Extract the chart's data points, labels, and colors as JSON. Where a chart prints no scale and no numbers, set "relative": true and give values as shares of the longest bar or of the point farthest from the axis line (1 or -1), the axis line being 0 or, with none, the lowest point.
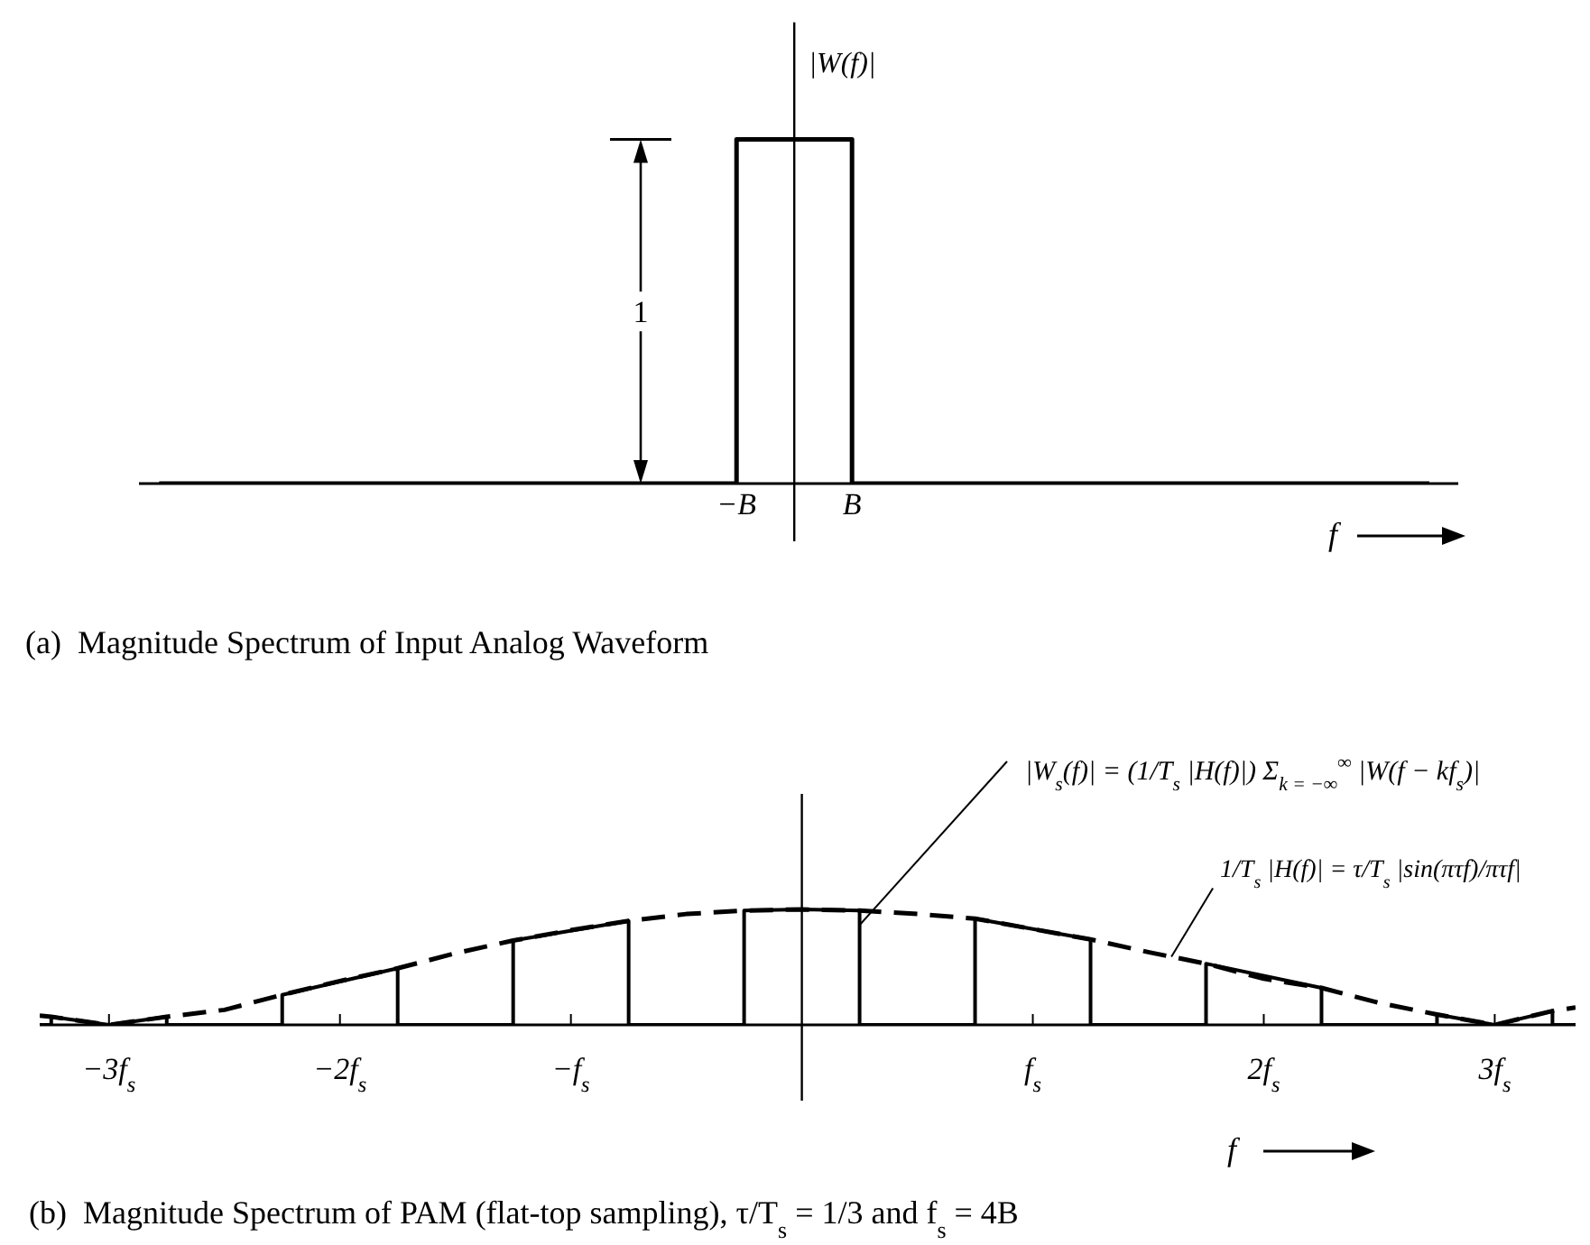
{
  "chart_data": [
    {
      "type": "step",
      "relative": true,
      "ylabel": "|W(f)|",
      "xlabel": "f",
      "categories": [
        null,
        null,
        null,
        null,
        null,
        null,
        null,
        null,
        null,
        null,
        "−B",
        null,
        "B",
        null,
        null,
        null,
        null,
        null,
        null,
        null,
        null,
        null,
        null
      ],
      "series": [
        {
          "color": "#000000",
          "values": [
            0,
            0,
            0,
            0,
            0,
            0,
            0,
            0,
            0,
            0,
            1,
            1,
            0,
            0,
            0,
            0,
            0,
            0,
            0,
            0,
            0,
            0,
            0
          ]
        }
      ],
      "ref_lines": [
        {
          "axis": "x",
          "value": null
        }
      ],
      "annotations": [
        "1",
        "(a)  Magnitude Spectrum of Input Analog Waveform"
      ]
    },
    {
      "type": "line",
      "relative": true,
      "xlabel": "f",
      "xlim": [
        -3.3,
        3.35
      ],
      "xticks": [
        {
          "value": -3,
          "label": "−3f$_{s}$"
        },
        {
          "value": -2,
          "label": "−2f$_{s}$"
        },
        {
          "value": -1,
          "label": "−f$_{s}$"
        },
        {
          "value": 1,
          "label": "f$_{s}$"
        },
        {
          "value": 2,
          "label": "2f$_{s}$"
        },
        {
          "value": 3,
          "label": "3f$_{s}$"
        }
      ],
      "series": [
        {
          "color": "#000000",
          "x": [
            -3.3,
            -3.25,
            -3.25,
            -3,
            -2.75,
            -2.75,
            -2.25,
            -2.25,
            -1.75,
            -1.75,
            -1.25,
            -1.25,
            -0.75,
            -0.75,
            -0.25,
            -0.25,
            0,
            0.25,
            0.25,
            0.75,
            0.75,
            1.25,
            1.25,
            1.75,
            1.75,
            2.25,
            2.25,
            2.75,
            2.75,
            3,
            3.25,
            3.25,
            3.35
          ],
          "values": [
            0,
            0,
            0.07,
            0,
            0.07,
            0,
            0,
            0.26,
            0.49,
            0,
            0,
            0.73,
            0.9,
            0,
            0,
            0.99,
            1,
            0.99,
            0,
            0,
            0.92,
            0.74,
            0,
            0,
            0.53,
            0.32,
            0,
            0,
            0.09,
            0,
            0.12,
            0,
            0
          ]
        },
        {
          "color": "#000000",
          "line_style": "dashed",
          "x": [
            -3.3,
            -3.25,
            -3,
            -2.75,
            -2.5,
            -2.25,
            -2,
            -1.75,
            -1.5,
            -1.25,
            -1,
            -0.75,
            -0.5,
            -0.25,
            0,
            0.25,
            0.5,
            0.75,
            1,
            1.25,
            1.5,
            1.75,
            2,
            2.25,
            2.5,
            2.75,
            3,
            3.25,
            3.35
          ],
          "values": [
            0.08,
            0.07,
            0,
            0.07,
            0.13,
            0.26,
            0.38,
            0.49,
            0.62,
            0.73,
            0.82,
            0.9,
            0.96,
            0.99,
            1,
            0.99,
            0.96,
            0.92,
            0.83,
            0.74,
            0.63,
            0.53,
            0.4,
            0.32,
            0.19,
            0.09,
            0,
            0.12,
            0.15
          ]
        }
      ],
      "ref_lines": [
        {
          "axis": "x",
          "value": 0
        }
      ],
      "annotations": [
        "|W$_{s}$(f)| = (1/T$_{s}$ |H(f)|) Σ$_{k = −∞}$$^{∞}$ |W(f − kf$_{s}$)|",
        {
          "text": "1/T$_{s}$ |H(f)| = τ/T$_{s}$ |sin(πτf)/πτf|",
          "x": 1.6,
          "y": 0.59
        },
        "(b)  Magnitude Spectrum of PAM (flat-top sampling), τ/T$_{s}$ = 1/3 and f$_{s}$ = 4B"
      ]
    }
  ]
}
